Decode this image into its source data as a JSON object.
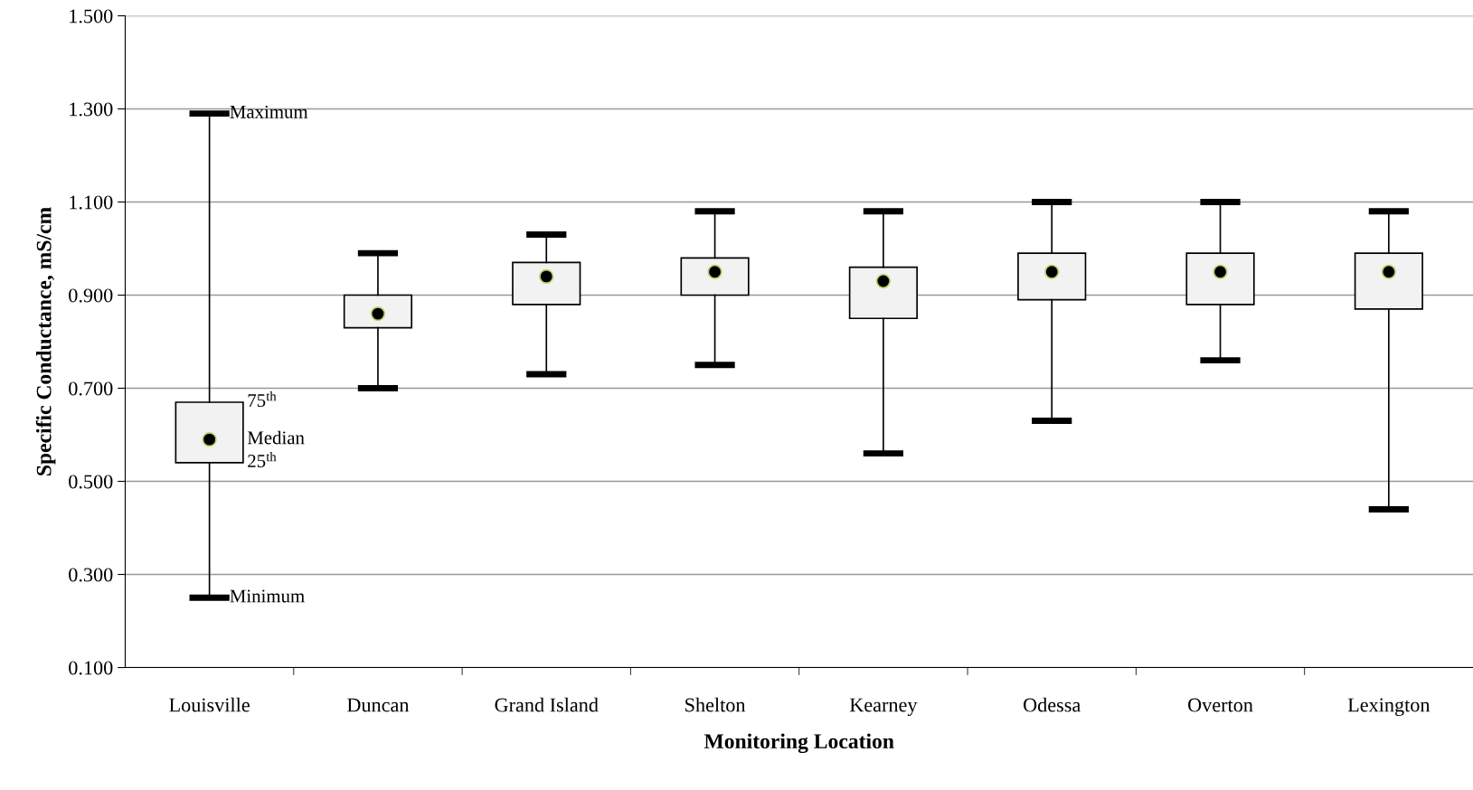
{
  "chart_data": {
    "type": "box",
    "xlabel": "Monitoring Location",
    "ylabel": "Specific Conductance, mS/cm",
    "categories": [
      "Louisville",
      "Duncan",
      "Grand Island",
      "Shelton",
      "Kearney",
      "Odessa",
      "Overton",
      "Lexington"
    ],
    "boxes": [
      {
        "low": 0.25,
        "q1": 0.54,
        "median": 0.59,
        "q3": 0.67,
        "high": 1.29
      },
      {
        "low": 0.7,
        "q1": 0.83,
        "median": 0.86,
        "q3": 0.9,
        "high": 0.99
      },
      {
        "low": 0.73,
        "q1": 0.88,
        "median": 0.94,
        "q3": 0.97,
        "high": 1.03
      },
      {
        "low": 0.75,
        "q1": 0.9,
        "median": 0.95,
        "q3": 0.98,
        "high": 1.08
      },
      {
        "low": 0.56,
        "q1": 0.85,
        "median": 0.93,
        "q3": 0.96,
        "high": 1.08
      },
      {
        "low": 0.63,
        "q1": 0.89,
        "median": 0.95,
        "q3": 0.99,
        "high": 1.1
      },
      {
        "low": 0.76,
        "q1": 0.88,
        "median": 0.95,
        "q3": 0.99,
        "high": 1.1
      },
      {
        "low": 0.44,
        "q1": 0.87,
        "median": 0.95,
        "q3": 0.99,
        "high": 1.08
      }
    ],
    "color": "#f2f2f2",
    "ylim": [
      0.1,
      1.5
    ],
    "yticks": [
      {
        "value": 0.1,
        "label": "0.100"
      },
      {
        "value": 0.3,
        "label": "0.300"
      },
      {
        "value": 0.5,
        "label": "0.500"
      },
      {
        "value": 0.7,
        "label": "0.700"
      },
      {
        "value": 0.9,
        "label": "0.900"
      },
      {
        "value": 1.1,
        "label": "1.100"
      },
      {
        "value": 1.3,
        "label": "1.300"
      },
      {
        "value": 1.5,
        "label": "1.500"
      }
    ],
    "grid": "y",
    "annotations": [
      {
        "text": "Maximum",
        "x": "Louisville",
        "y": 1.29
      },
      {
        "text": "75$^{th}$",
        "x": "Louisville",
        "y": 0.67
      },
      {
        "text": "Median",
        "x": "Louisville",
        "y": 0.59
      },
      {
        "text": "25$^{th}$",
        "x": "Louisville",
        "y": 0.54
      },
      {
        "text": "Minimum",
        "x": "Louisville",
        "y": 0.25
      }
    ]
  }
}
